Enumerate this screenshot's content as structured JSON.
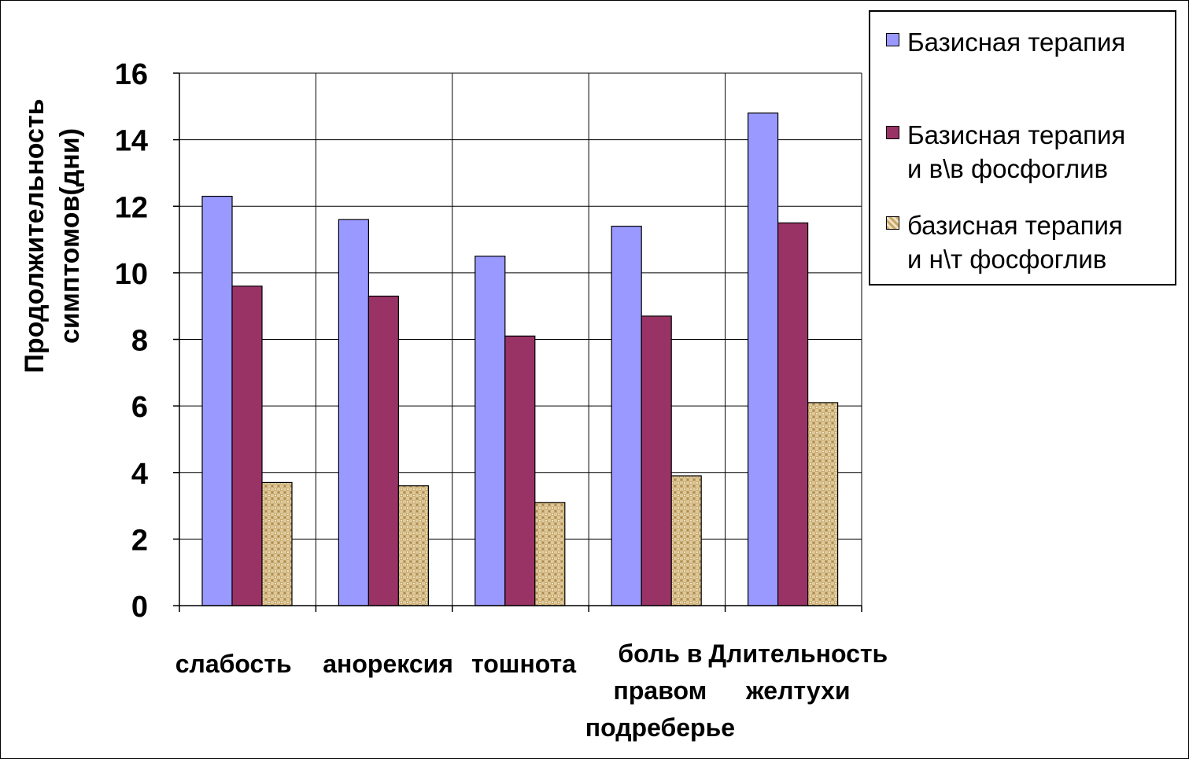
{
  "chart_data": {
    "type": "bar",
    "categories": [
      "слабость",
      "анорексия",
      "тошнота",
      "боль в\nправом\nподреберье",
      "Длительность\nжелтухи"
    ],
    "series": [
      {
        "name": "Базисная терапия",
        "color": "#9999ff",
        "pattern": "solid",
        "values": [
          12.3,
          11.6,
          10.5,
          11.4,
          14.8
        ]
      },
      {
        "name": "Базисная терапия\nи в\\в фосфоглив",
        "color": "#993366",
        "pattern": "solid",
        "values": [
          9.6,
          9.3,
          8.1,
          8.7,
          11.5
        ]
      },
      {
        "name": "базисная терапия\nи н\\т фосфоглив",
        "color": "#d9c59a",
        "pattern": "burlap-texture",
        "values": [
          3.7,
          3.6,
          3.1,
          3.9,
          6.1
        ]
      }
    ],
    "ylabel": "Продолжительность\nсимптомов(дни)",
    "xlabel": "",
    "ylim": [
      0,
      16
    ],
    "yticks": [
      0,
      2,
      4,
      6,
      8,
      10,
      12,
      14,
      16
    ],
    "grid": true,
    "legend_position": "top-right"
  }
}
